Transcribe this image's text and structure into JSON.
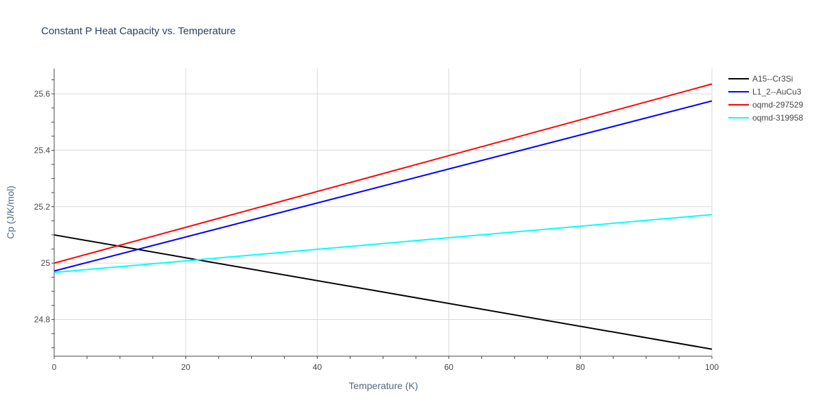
{
  "chart_data": {
    "type": "line",
    "title": "Constant P Heat Capacity vs. Temperature",
    "xlabel": "Temperature (K)",
    "ylabel": "Cp (J/K/mol)",
    "xlim": [
      0,
      100
    ],
    "ylim": [
      24.67,
      25.69
    ],
    "xticks": [
      0,
      20,
      40,
      60,
      80,
      100
    ],
    "xtick_labels": [
      "0",
      "20",
      "40",
      "60",
      "80",
      "100"
    ],
    "yticks": [
      24.8,
      25.0,
      25.2,
      25.4,
      25.6
    ],
    "ytick_labels": [
      "24.8",
      "25",
      "25.2",
      "25.4",
      "25.6"
    ],
    "grid": true,
    "legend_position": "top-right",
    "series": [
      {
        "name": "A15--Cr3Si",
        "color": "#000000",
        "x": [
          0,
          100
        ],
        "y": [
          25.1,
          24.695
        ]
      },
      {
        "name": "L1_2--AuCu3",
        "color": "#0000ff",
        "x": [
          0,
          100
        ],
        "y": [
          24.972,
          25.575
        ]
      },
      {
        "name": "oqmd-297529",
        "color": "#ff0000",
        "x": [
          0,
          100
        ],
        "y": [
          25.0,
          25.635
        ]
      },
      {
        "name": "oqmd-319958",
        "color": "#00ffff",
        "x": [
          0,
          100
        ],
        "y": [
          24.967,
          25.172
        ]
      }
    ]
  }
}
